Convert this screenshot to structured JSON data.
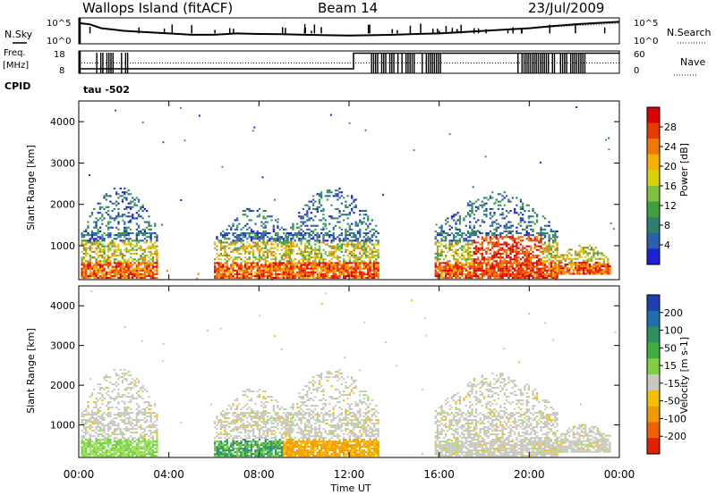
{
  "header": {
    "station": "Wallops Island (fitACF)",
    "beam": "Beam 14",
    "date": "23/Jul/2009"
  },
  "left_labels": {
    "nsky": "N.Sky",
    "freq": "Freq.",
    "freq_unit": "[MHz]",
    "cpid": "CPID"
  },
  "right_labels": {
    "nsearch": "N.Search",
    "nave": "Nave"
  },
  "cpid_text": "tau -502",
  "colors": {
    "power": [
      "#1f1fd6",
      "#2a5fb0",
      "#2f7f6f",
      "#3f9f3f",
      "#7fc040",
      "#d7d200",
      "#f5b000",
      "#f07a00",
      "#e83a00",
      "#dd0000"
    ],
    "velocity_palette": [
      "#1f3fb0",
      "#1f6fb0",
      "#2f8f5f",
      "#3faf3f",
      "#7fd040",
      "#c8c8c0",
      "#f2c000",
      "#f09a00",
      "#f06000",
      "#e02000",
      "#dd0000"
    ]
  },
  "chart_data": [
    {
      "type": "line",
      "name": "noise-panel",
      "left_ticks": [
        "10^5",
        "10^0"
      ],
      "right_ticks": [
        "10^5",
        "10^0"
      ],
      "xlim": [
        0,
        24
      ],
      "series": [
        {
          "name": "N.Sky",
          "x": [
            0,
            0.5,
            1,
            1.5,
            2,
            3,
            4,
            5,
            6,
            7,
            8,
            9,
            10,
            11,
            12,
            13,
            14,
            15,
            16,
            17,
            18,
            19,
            20,
            21,
            22,
            23,
            24
          ],
          "y": [
            0.8,
            0.75,
            0.6,
            0.55,
            0.5,
            0.45,
            0.4,
            0.35,
            0.35,
            0.4,
            0.38,
            0.37,
            0.35,
            0.33,
            0.32,
            0.33,
            0.35,
            0.38,
            0.4,
            0.45,
            0.5,
            0.55,
            0.6,
            0.68,
            0.75,
            0.8,
            0.85
          ]
        },
        {
          "name": "N.Search",
          "x": [
            12,
            13,
            14,
            15,
            16,
            17,
            18,
            19,
            20,
            21,
            22,
            23,
            24
          ],
          "y": [
            0.3,
            0.33,
            0.35,
            0.37,
            0.4,
            0.45,
            0.5,
            0.55,
            0.6,
            0.65,
            0.7,
            0.75,
            0.8
          ]
        }
      ]
    },
    {
      "type": "line",
      "name": "freq-nave-panel",
      "left_ticks": [
        "18",
        "8"
      ],
      "right_ticks": [
        "60",
        "0"
      ],
      "xlim": [
        0,
        24
      ],
      "series": [
        {
          "name": "Freq",
          "x": [
            0,
            12.2,
            12.2,
            24
          ],
          "y": [
            10,
            10,
            17,
            17
          ]
        },
        {
          "name": "Nave",
          "x": [
            0,
            24
          ],
          "y": [
            28,
            28
          ]
        }
      ]
    },
    {
      "type": "heatmap",
      "name": "power",
      "ylabel": "Slant Range [km]",
      "cbar_label": "Power [dB]",
      "cbar_ticks": [
        "28",
        "24",
        "20",
        "16",
        "12",
        "8",
        "4"
      ],
      "xlim": [
        0,
        24
      ],
      "ylim": [
        180,
        4500
      ],
      "yticks": [
        "4000",
        "3000",
        "2000",
        "1000"
      ],
      "echo_regions": [
        {
          "t0": 0.1,
          "t1": 3.5,
          "r0": 200,
          "r1": 2400
        },
        {
          "t0": 6.0,
          "t1": 9.5,
          "r0": 200,
          "r1": 1900
        },
        {
          "t0": 9.2,
          "t1": 13.3,
          "r0": 200,
          "r1": 2400
        },
        {
          "t0": 15.8,
          "t1": 21.2,
          "r0": 200,
          "r1": 2300
        },
        {
          "t0": 21.2,
          "t1": 23.6,
          "r0": 300,
          "r1": 1000
        }
      ]
    },
    {
      "type": "heatmap",
      "name": "velocity",
      "ylabel": "Slant Range [km]",
      "cbar_label": "Velocity [m s-1]",
      "cbar_ticks": [
        "200",
        "100",
        "50",
        "15",
        "-15",
        "-50",
        "-100",
        "-200"
      ],
      "xlim": [
        0,
        24
      ],
      "ylim": [
        180,
        4500
      ],
      "yticks": [
        "4000",
        "3000",
        "2000",
        "1000"
      ],
      "xticks": [
        "00:00",
        "04:00",
        "08:00",
        "12:00",
        "16:00",
        "20:00",
        "00:00"
      ],
      "xlabel": "Time UT"
    }
  ]
}
